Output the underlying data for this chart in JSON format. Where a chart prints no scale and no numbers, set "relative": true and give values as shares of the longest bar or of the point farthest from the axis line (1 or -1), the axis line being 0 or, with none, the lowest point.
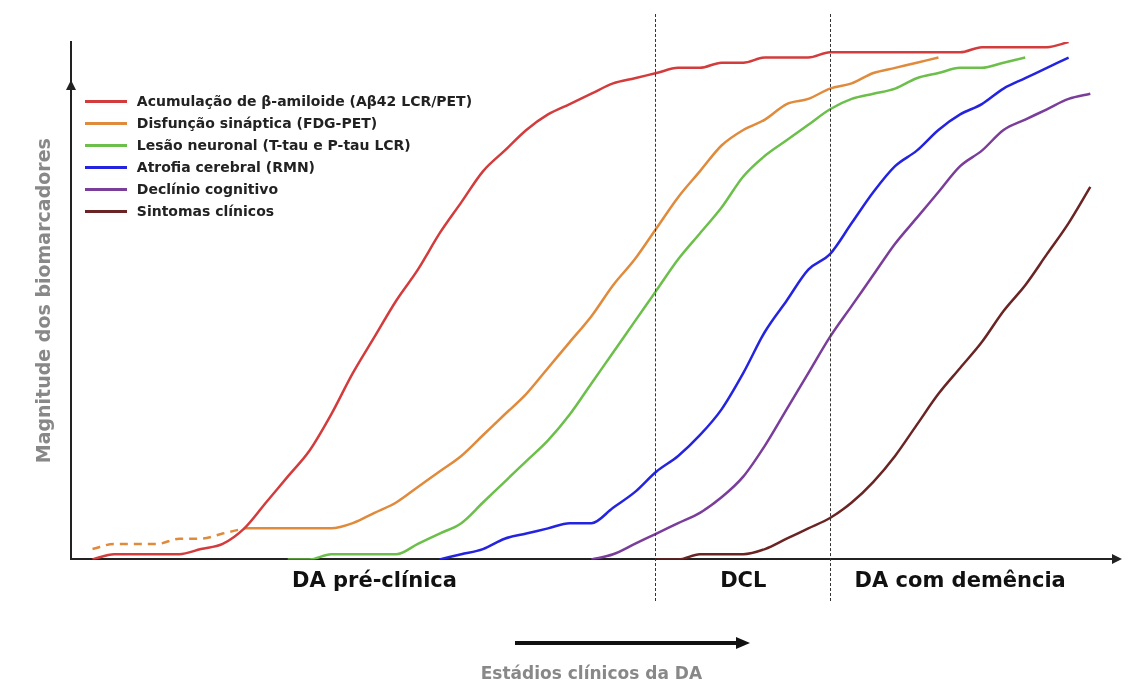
{
  "chart_data": {
    "type": "line",
    "relative": true,
    "xlabel": "Estádios clínicos da DA",
    "ylabel": "Magnitude dos biomarcadores",
    "legend": "top left",
    "categories": [
      null,
      null,
      null,
      null,
      null,
      null,
      null,
      null,
      null,
      null,
      null,
      null,
      null,
      null,
      "DA pré-clínica",
      null,
      null,
      null,
      null,
      null,
      null,
      null,
      null,
      null,
      null,
      null,
      null,
      null,
      null,
      null,
      null,
      "DCL",
      null,
      null,
      null,
      null,
      null,
      null,
      null,
      null,
      null,
      "DA com demência",
      null,
      null,
      null,
      null,
      null,
      null,
      null
    ],
    "series": [
      {
        "name": "Acumulação de β-amiloide (Aβ42 LCR/PET)",
        "color": "#d23c3c",
        "values": [
          null,
          0,
          0.01,
          0.01,
          0.01,
          0.01,
          0.02,
          0.03,
          0.06,
          0.11,
          0.16,
          0.21,
          0.28,
          0.36,
          0.43,
          0.5,
          0.56,
          0.63,
          0.69,
          0.75,
          0.79,
          0.83,
          0.86,
          0.88,
          0.9,
          0.92,
          0.93,
          0.94,
          0.95,
          0.95,
          0.96,
          0.96,
          0.97,
          0.97,
          0.97,
          0.98,
          0.98,
          0.98,
          0.98,
          0.98,
          0.98,
          0.98,
          0.99,
          0.99,
          0.99,
          0.99,
          1,
          null,
          null
        ]
      },
      {
        "color": "#e08a3c",
        "line_style": "dashed",
        "values": [
          null,
          0.02,
          0.03,
          0.03,
          0.03,
          0.04,
          0.04,
          0.05,
          0.06,
          null,
          null,
          null,
          null,
          null,
          null,
          null,
          null,
          null,
          null,
          null,
          null,
          null,
          null,
          null,
          null,
          null,
          null,
          null,
          null,
          null,
          null,
          null,
          null,
          null,
          null,
          null,
          null,
          null,
          null,
          null,
          null,
          null,
          null,
          null,
          null,
          null,
          null,
          null,
          null
        ]
      },
      {
        "name": "Disfunção sináptica (FDG-PET)",
        "color": "#e08a3c",
        "values": [
          null,
          null,
          null,
          null,
          null,
          null,
          null,
          null,
          0.06,
          0.06,
          0.06,
          0.06,
          0.06,
          0.07,
          0.09,
          0.11,
          0.14,
          0.17,
          0.2,
          0.24,
          0.28,
          0.32,
          0.37,
          0.42,
          0.47,
          0.53,
          0.58,
          0.64,
          0.7,
          0.75,
          0.8,
          0.83,
          0.85,
          0.88,
          0.89,
          0.91,
          0.92,
          0.94,
          0.95,
          0.96,
          0.97,
          null,
          null,
          null,
          null,
          null,
          null,
          null,
          null
        ]
      },
      {
        "name": "Lesão neuronal (T-tau e P-tau LCR)",
        "color": "#6cbf4a",
        "values": [
          null,
          null,
          null,
          null,
          null,
          null,
          null,
          null,
          null,
          null,
          0,
          0,
          0.01,
          0.01,
          0.01,
          0.01,
          0.03,
          0.05,
          0.07,
          0.11,
          0.15,
          0.19,
          0.23,
          0.28,
          0.34,
          0.4,
          0.46,
          0.52,
          0.58,
          0.63,
          0.68,
          0.74,
          0.78,
          0.81,
          0.84,
          0.87,
          0.89,
          0.9,
          0.91,
          0.93,
          0.94,
          0.95,
          0.95,
          0.96,
          0.97,
          null,
          null,
          null,
          null
        ]
      },
      {
        "name": "Atrofia cerebral (RMN)",
        "color": "#2424e0",
        "values": [
          null,
          null,
          null,
          null,
          null,
          null,
          null,
          null,
          null,
          null,
          null,
          null,
          null,
          null,
          null,
          null,
          null,
          0,
          0.01,
          0.02,
          0.04,
          0.05,
          0.06,
          0.07,
          0.07,
          0.1,
          0.13,
          0.17,
          0.2,
          0.24,
          0.29,
          0.36,
          0.44,
          0.5,
          0.56,
          0.59,
          0.65,
          0.71,
          0.76,
          0.79,
          0.83,
          0.86,
          0.88,
          0.91,
          0.93,
          0.95,
          0.97,
          null,
          null
        ]
      },
      {
        "name": "Declínio cognitivo",
        "color": "#7a3e9a",
        "values": [
          null,
          null,
          null,
          null,
          null,
          null,
          null,
          null,
          null,
          null,
          null,
          null,
          null,
          null,
          null,
          null,
          null,
          null,
          null,
          null,
          null,
          null,
          null,
          null,
          0,
          0.01,
          0.03,
          0.05,
          0.07,
          0.09,
          0.12,
          0.16,
          0.22,
          0.29,
          0.36,
          0.43,
          0.49,
          0.55,
          0.61,
          0.66,
          0.71,
          0.76,
          0.79,
          0.83,
          0.85,
          0.87,
          0.89,
          0.9,
          null
        ]
      },
      {
        "name": "Sintomas clínicos",
        "color": "#6b2424",
        "values": [
          null,
          null,
          null,
          null,
          null,
          null,
          null,
          null,
          null,
          null,
          null,
          null,
          null,
          null,
          null,
          null,
          null,
          null,
          null,
          null,
          null,
          null,
          null,
          null,
          null,
          null,
          null,
          0,
          0,
          0.01,
          0.01,
          0.01,
          0.02,
          0.04,
          0.06,
          0.08,
          0.11,
          0.15,
          0.2,
          0.26,
          0.32,
          0.37,
          0.42,
          0.48,
          0.53,
          0.59,
          0.65,
          0.72,
          null
        ]
      }
    ]
  }
}
